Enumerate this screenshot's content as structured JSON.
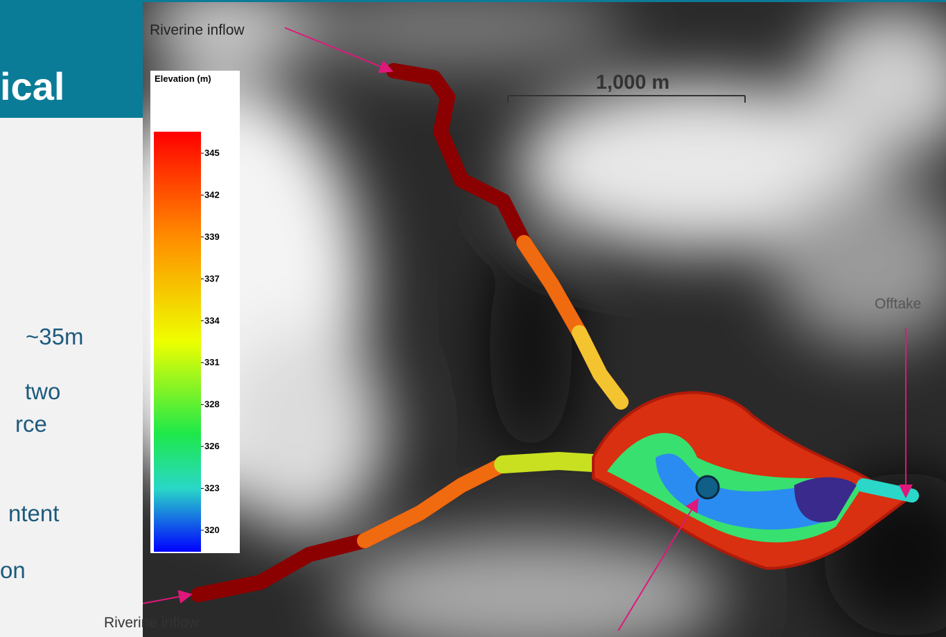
{
  "header": {
    "title": "ical"
  },
  "body": {
    "lines": [
      "~35m",
      "two",
      "rce",
      "ntent",
      "on"
    ]
  },
  "colorbar": {
    "title": "Elevation (m)",
    "ticks": [
      345,
      342,
      339,
      337,
      334,
      331,
      328,
      326,
      323,
      320
    ]
  },
  "map": {
    "scale_label": "1,000 m",
    "annotations": [
      "Riverine inflow",
      "Offtake",
      "Riverine inflow"
    ]
  }
}
